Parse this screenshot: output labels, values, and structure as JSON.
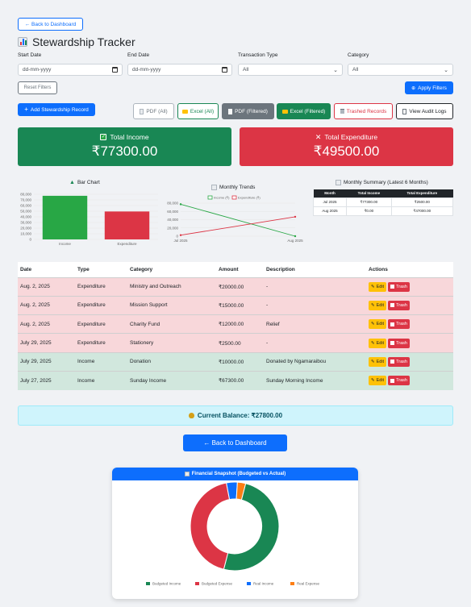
{
  "nav": {
    "back_top": "← Back to Dashboard",
    "back_bottom": "← Back to Dashboard"
  },
  "page": {
    "title": "Stewardship Tracker",
    "title_icon": "bar-chart-emoji"
  },
  "filters": {
    "start_label": "Start Date",
    "start_value": "dd-mm-yyyy",
    "end_label": "End Date",
    "end_value": "dd-mm-yyyy",
    "type_label": "Transaction Type",
    "type_value": "All",
    "category_label": "Category",
    "category_value": "All",
    "reset": "Reset Filters",
    "apply": "Apply Filters"
  },
  "actions": {
    "add": "Add Stewardship Record",
    "pdf_all": "PDF (All)",
    "excel_all": "Excel (All)",
    "pdf_filtered": "PDF (Filtered)",
    "excel_filtered": "Excel (Filtered)",
    "trashed": "Trashed Records",
    "audit": "View Audit Logs"
  },
  "summary": {
    "income_title": "Total Income",
    "income_value": "₹77300.00",
    "expense_title": "Total Expenditure",
    "expense_value": "₹49500.00"
  },
  "colors": {
    "income": "#198754",
    "expense": "#dc3545",
    "primary": "#0d6efd",
    "warning": "#ffc107"
  },
  "chart_data": [
    {
      "type": "bar",
      "title": "Bar Chart",
      "categories": [
        "Income",
        "Expenditure"
      ],
      "values": [
        77300,
        49500
      ],
      "colors": [
        "#28a745",
        "#dc3545"
      ],
      "ylim": [
        0,
        80000
      ],
      "yticks": [
        0,
        10000,
        20000,
        30000,
        40000,
        50000,
        60000,
        70000,
        80000
      ],
      "ytick_labels": [
        "0",
        "10,000",
        "20,000",
        "30,000",
        "40,000",
        "50,000",
        "60,000",
        "70,000",
        "80,000"
      ],
      "grid": true
    },
    {
      "type": "line",
      "title": "Monthly Trends",
      "x": [
        "Jul 2025",
        "Aug 2025"
      ],
      "series": [
        {
          "name": "Income (₹)",
          "values": [
            77300,
            0
          ],
          "color": "#28a745"
        },
        {
          "name": "Expenditure (₹)",
          "values": [
            2500,
            47000
          ],
          "color": "#dc3545"
        }
      ],
      "ylim": [
        0,
        80000
      ],
      "yticks": [
        0,
        20000,
        40000,
        60000,
        80000
      ],
      "ytick_labels": [
        "0",
        "20,000",
        "40,000",
        "60,000",
        "80,000"
      ],
      "legend": "top",
      "grid": true
    },
    {
      "type": "table",
      "title": "Monthly Summary (Latest 6 Months)",
      "columns": [
        "Month",
        "Total Income",
        "Total Expenditure"
      ],
      "rows": [
        [
          "Jul 2025",
          "₹77300.00",
          "₹2500.00"
        ],
        [
          "Aug 2025",
          "₹0.00",
          "₹47000.00"
        ]
      ]
    },
    {
      "type": "pie",
      "title": "Financial Snapshot (Budgeted vs Actual)",
      "categories": [
        "Budgeted Income",
        "Budgeted Expense",
        "Real Income",
        "Real Expense"
      ],
      "values": [
        50,
        43,
        4,
        3
      ],
      "colors": [
        "#198754",
        "#dc3545",
        "#0d6efd",
        "#fd7e14"
      ],
      "legend": "bottom"
    }
  ],
  "table": {
    "headers": [
      "Date",
      "Type",
      "Category",
      "Amount",
      "Description",
      "Actions"
    ],
    "edit_label": "Edit",
    "trash_label": "Trash",
    "rows": [
      {
        "date": "Aug. 2, 2025",
        "type": "Expenditure",
        "category": "Ministry and Outreach",
        "amount": "₹20000.00",
        "description": "-",
        "kind": "expense"
      },
      {
        "date": "Aug. 2, 2025",
        "type": "Expenditure",
        "category": "Mission Support",
        "amount": "₹15000.00",
        "description": "-",
        "kind": "expense"
      },
      {
        "date": "Aug. 2, 2025",
        "type": "Expenditure",
        "category": "Charity Fund",
        "amount": "₹12000.00",
        "description": "Relief",
        "kind": "expense"
      },
      {
        "date": "July 29, 2025",
        "type": "Expenditure",
        "category": "Stationery",
        "amount": "₹2500.00",
        "description": "-",
        "kind": "expense"
      },
      {
        "date": "July 29, 2025",
        "type": "Income",
        "category": "Donation",
        "amount": "₹10000.00",
        "description": "Donated by Ngamaraibou",
        "kind": "income"
      },
      {
        "date": "July 27, 2025",
        "type": "Income",
        "category": "Sunday Income",
        "amount": "₹67300.00",
        "description": "Sunday Morning Income",
        "kind": "income"
      }
    ]
  },
  "balance": {
    "label": "Current Balance: ₹27800.00"
  }
}
